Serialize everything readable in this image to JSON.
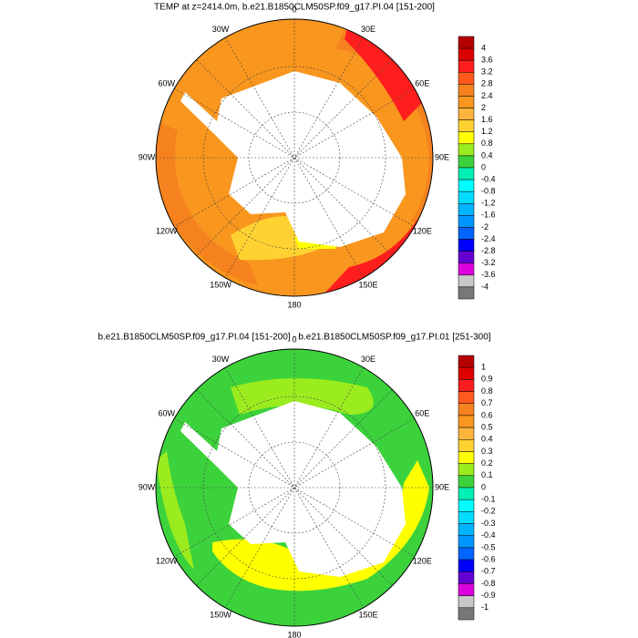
{
  "maps": [
    {
      "title": "TEMP at z=2414.0m, b.e21.B1850CLM50SP.f09_g17.PI.04 [151-200]",
      "lon_labels": [
        "0",
        "30E",
        "60E",
        "90E",
        "120E",
        "150E",
        "180",
        "150W",
        "120W",
        "90W",
        "60W",
        "30W"
      ],
      "colorbar": {
        "labels": [
          4,
          3.6,
          3.2,
          2.8,
          2.4,
          2,
          1.6,
          1.2,
          0.8,
          0.4,
          0,
          -0.4,
          -0.8,
          -1.2,
          -1.6,
          -2,
          -2.4,
          -2.8,
          -3.2,
          -3.6,
          -4
        ],
        "colors": [
          "#b40000",
          "#dc0000",
          "#ff1e1e",
          "#ff5a1e",
          "#f5821e",
          "#f8961e",
          "#fcb43c",
          "#ffd232",
          "#ffff00",
          "#9bec1e",
          "#3cd23c",
          "#00f0b4",
          "#00ffff",
          "#00dcff",
          "#00b4ff",
          "#0096ff",
          "#0064ff",
          "#0000ff",
          "#6400d2",
          "#dc00dc",
          "#c8c8c8",
          "#787878"
        ]
      }
    },
    {
      "title": "b.e21.B1850CLM50SP.f09_g17.PI.04 [151-200] - b.e21.B1850CLM50SP.f09_g17.PI.01 [251-300]",
      "lon_labels": [
        "0",
        "30E",
        "60E",
        "90E",
        "120E",
        "150E",
        "180",
        "150W",
        "120W",
        "90W",
        "60W",
        "30W"
      ],
      "colorbar": {
        "labels": [
          1,
          0.9,
          0.8,
          0.7,
          0.6,
          0.5,
          0.4,
          0.3,
          0.2,
          0.1,
          0,
          -0.1,
          -0.2,
          -0.3,
          -0.4,
          -0.5,
          -0.6,
          -0.7,
          -0.8,
          -0.9,
          -1
        ],
        "colors": [
          "#b40000",
          "#dc0000",
          "#ff1e1e",
          "#ff5a1e",
          "#f5821e",
          "#f8961e",
          "#fcb43c",
          "#ffd232",
          "#ffff00",
          "#9bec1e",
          "#3cd23c",
          "#00f0b4",
          "#00ffff",
          "#00dcff",
          "#00b4ff",
          "#0096ff",
          "#0064ff",
          "#0000ff",
          "#6400d2",
          "#dc00dc",
          "#c8c8c8",
          "#787878"
        ]
      }
    }
  ]
}
